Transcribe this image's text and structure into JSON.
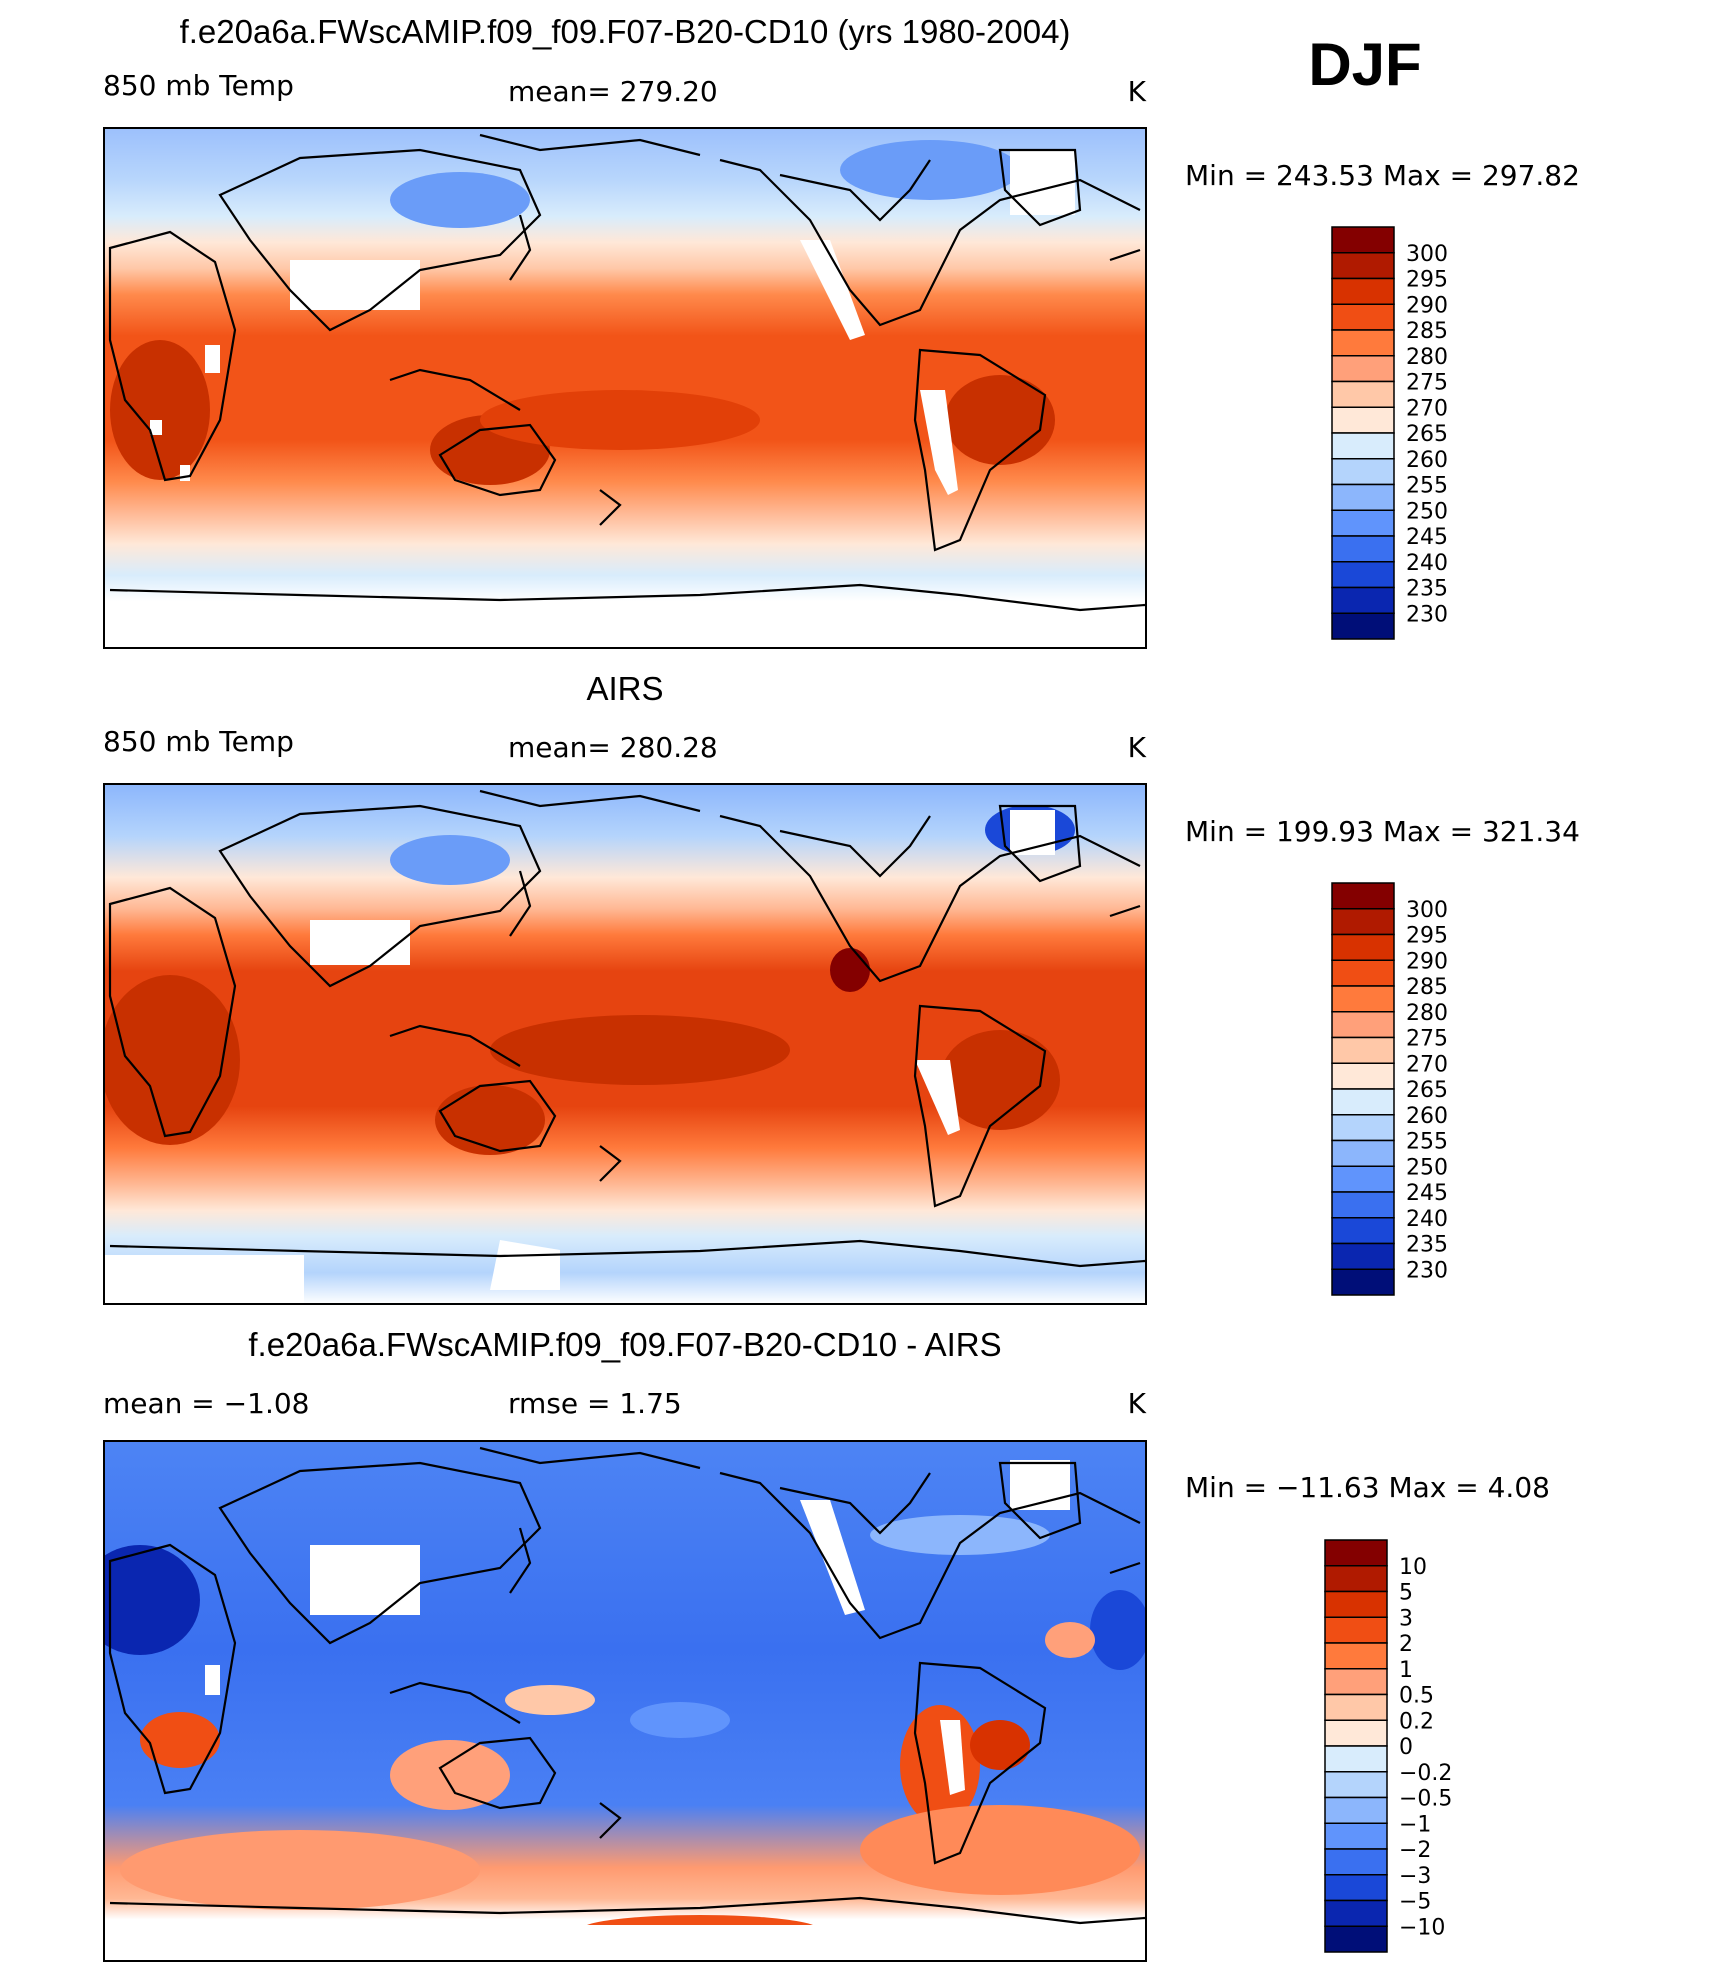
{
  "season": "DJF",
  "chart_data": [
    {
      "type": "heatmap",
      "title": "f.e20a6a.FWscAMIP.f09_f09.F07-B20-CD10 (yrs 1980-2004)",
      "variable": "850 mb Temp",
      "stat_text": "mean= 279.20",
      "units": "K",
      "minmax_text": "Min =  243.53 Max =  297.82",
      "min": 243.53,
      "max": 297.82,
      "mean": 279.2,
      "colorbar_labels": [
        "300",
        "295",
        "290",
        "285",
        "280",
        "275",
        "270",
        "265",
        "260",
        "255",
        "250",
        "245",
        "240",
        "235",
        "230"
      ],
      "colorbar_colors": [
        "#840000",
        "#b01a00",
        "#d83200",
        "#f04e14",
        "#ff7a3c",
        "#ffa07a",
        "#ffc8a8",
        "#ffe8d8",
        "#d8ecfc",
        "#b4d4fc",
        "#8cb6fc",
        "#6094fc",
        "#3a70f0",
        "#1a48d8",
        "#0a26b0",
        "#000e78"
      ]
    },
    {
      "type": "heatmap",
      "title": "AIRS",
      "variable": "850 mb Temp",
      "stat_text": "mean= 280.28",
      "units": "K",
      "minmax_text": "Min =  199.93 Max =  321.34",
      "min": 199.93,
      "max": 321.34,
      "mean": 280.28,
      "colorbar_labels": [
        "300",
        "295",
        "290",
        "285",
        "280",
        "275",
        "270",
        "265",
        "260",
        "255",
        "250",
        "245",
        "240",
        "235",
        "230"
      ],
      "colorbar_colors": [
        "#840000",
        "#b01a00",
        "#d83200",
        "#f04e14",
        "#ff7a3c",
        "#ffa07a",
        "#ffc8a8",
        "#ffe8d8",
        "#d8ecfc",
        "#b4d4fc",
        "#8cb6fc",
        "#6094fc",
        "#3a70f0",
        "#1a48d8",
        "#0a26b0",
        "#000e78"
      ]
    },
    {
      "type": "heatmap",
      "title": "f.e20a6a.FWscAMIP.f09_f09.F07-B20-CD10 - AIRS",
      "variable": "mean =   −1.08",
      "stat_text": "rmse =    1.75",
      "units": "K",
      "minmax_text": "Min = −11.63 Max =    4.08",
      "min": -11.63,
      "max": 4.08,
      "mean": -1.08,
      "rmse": 1.75,
      "colorbar_labels": [
        "10",
        "5",
        "3",
        "2",
        "1",
        "0.5",
        "0.2",
        "0",
        "−0.2",
        "−0.5",
        "−1",
        "−2",
        "−3",
        "−5",
        "−10"
      ],
      "colorbar_colors": [
        "#840000",
        "#b01a00",
        "#d83200",
        "#f04e14",
        "#ff7a3c",
        "#ffa07a",
        "#ffc8a8",
        "#ffe8d8",
        "#d8ecfc",
        "#b4d4fc",
        "#8cb6fc",
        "#6094fc",
        "#3a70f0",
        "#1a48d8",
        "#0a26b0",
        "#000e78"
      ]
    }
  ]
}
